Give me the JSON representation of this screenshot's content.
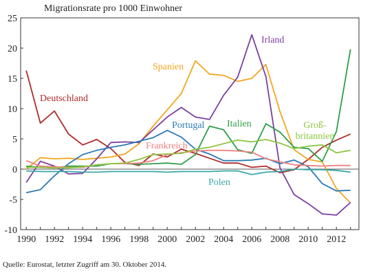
{
  "chart_data": {
    "type": "line",
    "title": "Migrationsrate pro 1000 Einwohner",
    "xlabel": "",
    "ylabel": "",
    "xlim": [
      1989.6,
      2013.6
    ],
    "ylim": [
      -10,
      25
    ],
    "yticks": [
      -10,
      -5,
      0,
      5,
      10,
      15,
      20,
      25
    ],
    "xticks": [
      1990,
      1992,
      1994,
      1996,
      1998,
      2000,
      2002,
      2004,
      2006,
      2008,
      2010,
      2012
    ],
    "grid": false,
    "legend": "inline labels",
    "years": [
      1990,
      1991,
      1992,
      1993,
      1994,
      1995,
      1996,
      1997,
      1998,
      1999,
      2000,
      2001,
      2002,
      2003,
      2004,
      2005,
      2006,
      2007,
      2008,
      2009,
      2010,
      2011,
      2012,
      2013
    ],
    "series": [
      {
        "name": "Deutschland",
        "color": "#b02a2a",
        "values": [
          16.3,
          7.6,
          9.6,
          5.8,
          4.0,
          4.9,
          3.4,
          1.1,
          0.6,
          2.5,
          2.0,
          3.3,
          2.6,
          1.8,
          1.0,
          1.0,
          0.3,
          0.5,
          -0.6,
          -0.1,
          1.6,
          3.6,
          4.8,
          5.8
        ]
      },
      {
        "name": "Spanien",
        "color": "#f2a51e",
        "values": [
          0.0,
          1.9,
          1.7,
          1.8,
          1.6,
          1.8,
          2.0,
          2.5,
          4.2,
          7.1,
          9.8,
          12.5,
          17.9,
          15.7,
          15.5,
          14.5,
          15.0,
          17.3,
          9.5,
          3.2,
          1.6,
          1.2,
          -3.2,
          -5.6
        ]
      },
      {
        "name": "Irland",
        "color": "#7b3fa0",
        "values": [
          -2.2,
          1.3,
          0.5,
          -0.8,
          -0.7,
          1.7,
          4.4,
          4.5,
          4.4,
          6.5,
          8.6,
          10.2,
          8.6,
          8.2,
          12.2,
          15.2,
          22.2,
          15.3,
          0.2,
          -4.2,
          -5.7,
          -7.4,
          -7.6,
          -5.5
        ]
      },
      {
        "name": "Italien",
        "color": "#2e9e48",
        "values": [
          0.5,
          0.3,
          0.2,
          0.5,
          0.5,
          0.5,
          0.9,
          0.9,
          0.8,
          0.9,
          1.0,
          0.8,
          2.4,
          7.1,
          6.5,
          3.2,
          2.6,
          7.5,
          6.1,
          3.6,
          3.4,
          1.3,
          6.2,
          19.8
        ]
      },
      {
        "name": "Portugal",
        "color": "#2a7ab5",
        "values": [
          -3.9,
          -3.4,
          -1.1,
          0.9,
          2.4,
          3.1,
          3.6,
          4.0,
          4.6,
          5.2,
          6.4,
          5.3,
          3.3,
          2.5,
          1.4,
          1.4,
          1.5,
          1.8,
          0.9,
          1.5,
          0.4,
          -2.4,
          -3.6,
          -3.5
        ]
      },
      {
        "name": "Frankreich",
        "color": "#f08080",
        "values": [
          1.4,
          0.5,
          0.4,
          0.3,
          0.3,
          0.7,
          0.9,
          0.9,
          1.0,
          1.4,
          2.4,
          2.7,
          3.0,
          3.1,
          3.1,
          3.0,
          2.8,
          1.7,
          1.2,
          0.7,
          0.6,
          0.5,
          0.6,
          0.6
        ]
      },
      {
        "name": "Groß-britannien",
        "label_lines": [
          "Groß-",
          "britannien"
        ],
        "color": "#8cc63f",
        "values": [
          0.3,
          0.3,
          0.2,
          0.2,
          0.4,
          0.7,
          0.9,
          1.0,
          1.6,
          2.4,
          2.5,
          2.6,
          3.3,
          3.6,
          4.2,
          4.8,
          4.5,
          4.9,
          4.3,
          3.4,
          3.8,
          4.0,
          2.7,
          3.1
        ]
      },
      {
        "name": "Polen",
        "color": "#3aa8a8",
        "values": [
          -0.3,
          -0.4,
          -0.4,
          -0.4,
          -0.5,
          -0.5,
          -0.4,
          -0.4,
          -0.4,
          -0.4,
          -0.5,
          -0.4,
          -0.4,
          -0.4,
          -0.3,
          -0.3,
          -0.9,
          -0.5,
          -0.4,
          0.0,
          -0.1,
          -0.1,
          -0.2,
          -0.5
        ]
      }
    ]
  },
  "source": "Quelle:  Eurostat, letzter Zugriff am 30. Oktober 2014."
}
